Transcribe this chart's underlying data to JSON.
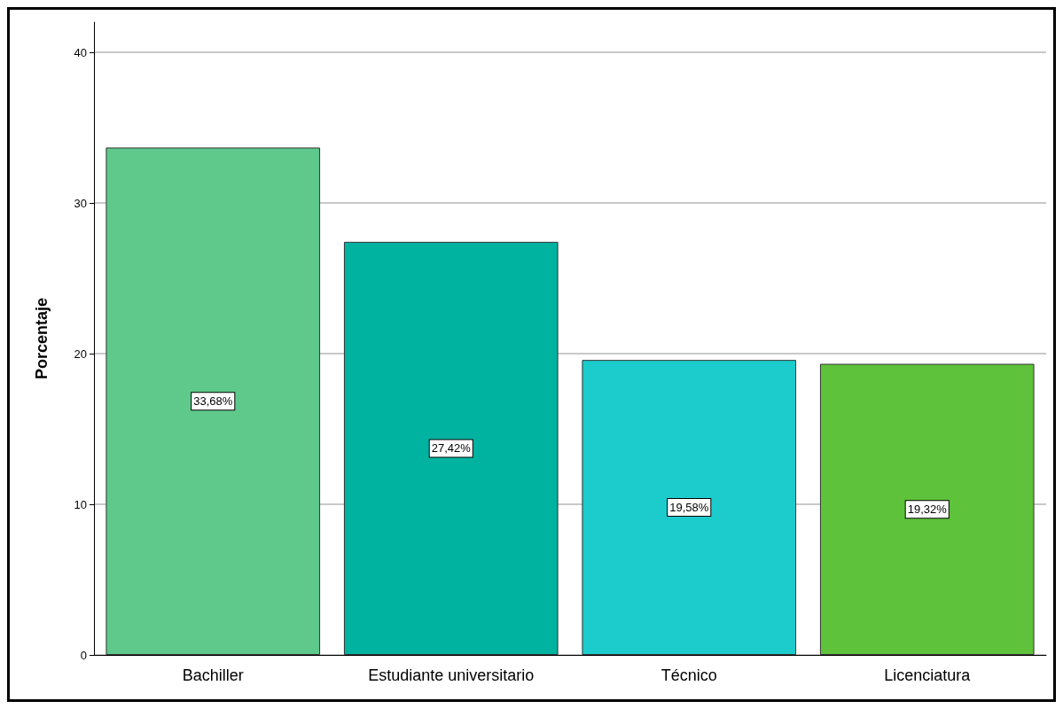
{
  "chart_data": {
    "type": "bar",
    "ylabel": "Porcentaje",
    "categories": [
      "Bachiller",
      "Estudiante universitario",
      "Técnico",
      "Licenciatura"
    ],
    "values": [
      33.68,
      27.42,
      19.58,
      19.32
    ],
    "colors": [
      "#5ec98a",
      "#00b3a0",
      "#1ccccc",
      "#5ec23a"
    ],
    "value_labels": [
      "33,68%",
      "27,42%",
      "19,58%",
      "19,32%"
    ],
    "ylim": [
      0,
      42
    ],
    "yticks": [
      0,
      10,
      20,
      30,
      40
    ],
    "grid": "y"
  }
}
